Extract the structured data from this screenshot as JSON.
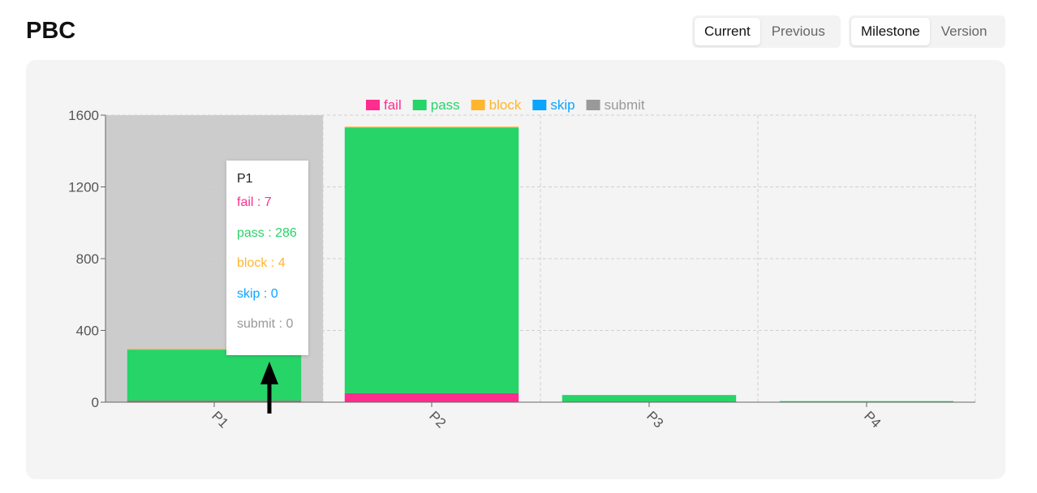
{
  "page": {
    "title": "PBC"
  },
  "period_toggle": {
    "options": [
      "Current",
      "Previous"
    ],
    "active": 0
  },
  "group_toggle": {
    "options": [
      "Milestone",
      "Version"
    ],
    "active": 0
  },
  "chart_data": {
    "type": "bar",
    "stacked": true,
    "categories": [
      "P1",
      "P2",
      "P3",
      "P4"
    ],
    "series": [
      {
        "name": "fail",
        "color": "#ff2d8e",
        "values": [
          7,
          50,
          0,
          0
        ]
      },
      {
        "name": "pass",
        "color": "#27d468",
        "values": [
          286,
          1480,
          40,
          6
        ]
      },
      {
        "name": "block",
        "color": "#ffb52e",
        "values": [
          4,
          6,
          0,
          0
        ]
      },
      {
        "name": "skip",
        "color": "#0ba4ff",
        "values": [
          0,
          0,
          0,
          0
        ]
      },
      {
        "name": "submit",
        "color": "#999999",
        "values": [
          0,
          0,
          0,
          0
        ]
      }
    ],
    "yticks": [
      0,
      400,
      800,
      1200,
      1600
    ],
    "ylim": [
      0,
      1600
    ],
    "grid": true,
    "legend_position": "top",
    "highlighted_category": "P1"
  },
  "tooltip": {
    "title": "P1",
    "rows": [
      {
        "label": "fail : 7",
        "color": "#ff2d8e"
      },
      {
        "label": "pass : 286",
        "color": "#27d468"
      },
      {
        "label": "block : 4",
        "color": "#ffb52e"
      },
      {
        "label": "skip : 0",
        "color": "#0ba4ff"
      },
      {
        "label": "submit : 0",
        "color": "#999999"
      }
    ]
  }
}
